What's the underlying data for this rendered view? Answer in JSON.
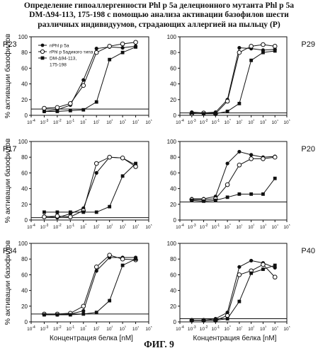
{
  "title_lines": [
    "Определение гипоаллергенности Phl p 5a делеционного мутанта Phl p 5a",
    "DM-Δ94-113, 175-198 с помощью анализа активации базофилов шести",
    "различных индивидуумов, страдающих аллергией на пыльцу (P)"
  ],
  "figure_caption": "ФИГ. 9",
  "colors": {
    "ink": "#111111",
    "background": "#ffffff"
  },
  "chart_data": [
    {
      "type": "line",
      "panel_label": "P23",
      "xscale": "log",
      "xlim": [
        0.0001,
        100000
      ],
      "ylim": [
        0,
        100
      ],
      "xticks": [
        "10-4",
        "10-3",
        "10-2",
        "10-1",
        "10⁰",
        "10¹",
        "10²",
        "10³",
        "10⁴",
        "10⁵"
      ],
      "yticks": [
        "0",
        "20",
        "40",
        "60",
        "80",
        "100"
      ],
      "ylabel": "% активации базофилов",
      "xlabel": "",
      "legend": {
        "placement": "top-left",
        "entries": [
          "nPhl p 5a",
          "rPhl p 5aдикого типа",
          "DM-Δ94-113,",
          "175-198"
        ]
      },
      "baseline": 8,
      "series": [
        {
          "name": "nPhl p 5a",
          "marker": "filled-circle",
          "x": [
            0.001,
            0.01,
            0.1,
            1,
            10,
            100,
            1000,
            10000
          ],
          "values": [
            5,
            7,
            13,
            45,
            85,
            87,
            86,
            88
          ]
        },
        {
          "name": "rPhl p 5aдикого типа",
          "marker": "open-circle",
          "x": [
            0.001,
            0.01,
            0.1,
            1,
            10,
            100,
            1000,
            10000
          ],
          "values": [
            9,
            10,
            15,
            38,
            80,
            88,
            91,
            93
          ]
        },
        {
          "name": "DM-Δ94-113, 175-198",
          "marker": "filled-square",
          "x": [
            0.001,
            0.01,
            0.1,
            1,
            10,
            100,
            1000,
            10000
          ],
          "values": [
            5,
            5,
            6,
            7,
            17,
            71,
            80,
            87
          ]
        }
      ]
    },
    {
      "type": "line",
      "panel_label": "P29",
      "xscale": "log",
      "xlim": [
        0.0001,
        100000
      ],
      "ylim": [
        0,
        100
      ],
      "xticks": [
        "10-4",
        "10-3",
        "10-2",
        "10-1",
        "10⁰",
        "10¹",
        "10²",
        "10³",
        "10⁴",
        "10⁵"
      ],
      "yticks": [
        "0",
        "20",
        "40",
        "60",
        "80",
        "100"
      ],
      "ylabel": "",
      "xlabel": "",
      "baseline": 3,
      "series": [
        {
          "name": "nPhl p 5a",
          "marker": "filled-circle",
          "x": [
            0.001,
            0.01,
            0.1,
            1,
            10,
            100,
            1000,
            10000
          ],
          "values": [
            4,
            3,
            4,
            20,
            86,
            85,
            83,
            84
          ]
        },
        {
          "name": "rPhl p 5aдикого типа",
          "marker": "open-circle",
          "x": [
            0.001,
            0.01,
            0.1,
            1,
            10,
            100,
            1000,
            10000
          ],
          "values": [
            2,
            3,
            2,
            18,
            80,
            88,
            90,
            88
          ]
        },
        {
          "name": "DM-Δ94-113, 175-198",
          "marker": "filled-square",
          "x": [
            0.001,
            0.01,
            0.1,
            1,
            10,
            100,
            1000,
            10000
          ],
          "values": [
            3,
            2,
            2,
            5,
            15,
            70,
            80,
            82
          ]
        }
      ]
    },
    {
      "type": "line",
      "panel_label": "P17",
      "xscale": "log",
      "xlim": [
        0.0001,
        100000
      ],
      "ylim": [
        0,
        100
      ],
      "xticks": [
        "10-4",
        "10-3",
        "10-2",
        "10-1",
        "10⁰",
        "10¹",
        "10²",
        "10³",
        "10⁴",
        "10⁵"
      ],
      "yticks": [
        "0",
        "20",
        "40",
        "60",
        "80",
        "100"
      ],
      "ylabel": "% активации базофилов",
      "xlabel": "",
      "baseline": 3,
      "series": [
        {
          "name": "nPhl p 5a",
          "marker": "filled-circle",
          "x": [
            0.001,
            0.01,
            0.1,
            1,
            10,
            100,
            1000,
            10000
          ],
          "values": [
            5,
            3,
            8,
            15,
            60,
            80,
            79,
            70
          ]
        },
        {
          "name": "rPhl p 5aдикого типа",
          "marker": "open-circle",
          "x": [
            0.001,
            0.01,
            0.1,
            1,
            10,
            100,
            1000,
            10000
          ],
          "values": [
            4,
            5,
            4,
            12,
            72,
            80,
            79,
            68
          ]
        },
        {
          "name": "DM-Δ94-113, 175-198",
          "marker": "filled-square",
          "x": [
            0.001,
            0.01,
            0.1,
            1,
            10,
            100,
            1000,
            10000
          ],
          "values": [
            10,
            10,
            10,
            10,
            10,
            17,
            56,
            72
          ]
        }
      ]
    },
    {
      "type": "line",
      "panel_label": "P20",
      "xscale": "log",
      "xlim": [
        0.0001,
        100000
      ],
      "ylim": [
        0,
        100
      ],
      "xticks": [
        "10-4",
        "10-3",
        "10-2",
        "10-1",
        "10⁰",
        "10¹",
        "10²",
        "10³",
        "10⁴",
        "10⁵"
      ],
      "yticks": [
        "0",
        "20",
        "40",
        "60",
        "80",
        "100"
      ],
      "ylabel": "",
      "xlabel": "",
      "baseline": 23,
      "series": [
        {
          "name": "nPhl p 5a",
          "marker": "filled-circle",
          "x": [
            0.001,
            0.01,
            0.1,
            1,
            10,
            100,
            1000,
            10000
          ],
          "values": [
            27,
            27,
            30,
            72,
            87,
            83,
            80,
            81
          ]
        },
        {
          "name": "rPhl p 5aдикого типа",
          "marker": "open-circle",
          "x": [
            0.001,
            0.01,
            0.1,
            1,
            10,
            100,
            1000,
            10000
          ],
          "values": [
            26,
            26,
            27,
            45,
            70,
            78,
            78,
            80
          ]
        },
        {
          "name": "DM-Δ94-113, 175-198",
          "marker": "filled-square",
          "x": [
            0.001,
            0.01,
            0.1,
            1,
            10,
            100,
            1000,
            10000
          ],
          "values": [
            25,
            24,
            25,
            29,
            33,
            33,
            33,
            53
          ]
        }
      ]
    },
    {
      "type": "line",
      "panel_label": "P34",
      "xscale": "log",
      "xlim": [
        0.0001,
        100000
      ],
      "ylim": [
        0,
        100
      ],
      "xticks": [
        "10-4",
        "10-3",
        "10-2",
        "10-1",
        "10⁰",
        "10¹",
        "10²",
        "10³",
        "10⁴",
        "10⁵"
      ],
      "yticks": [
        "0",
        "20",
        "40",
        "60",
        "80",
        "100"
      ],
      "ylabel": "% активации базофилов",
      "xlabel": "Концентрация белка [nM]",
      "baseline": 10,
      "series": [
        {
          "name": "nPhl p 5a",
          "marker": "filled-circle",
          "x": [
            0.001,
            0.01,
            0.1,
            1,
            10,
            100,
            1000,
            10000
          ],
          "values": [
            10,
            9,
            10,
            14,
            65,
            82,
            82,
            82
          ]
        },
        {
          "name": "rPhl p 5aдикого типа",
          "marker": "open-circle",
          "x": [
            0.001,
            0.01,
            0.1,
            1,
            10,
            100,
            1000,
            10000
          ],
          "values": [
            10,
            10,
            11,
            20,
            70,
            85,
            80,
            79
          ]
        },
        {
          "name": "DM-Δ94-113, 175-198",
          "marker": "filled-square",
          "x": [
            0.001,
            0.01,
            0.1,
            1,
            10,
            100,
            1000,
            10000
          ],
          "values": [
            9,
            9,
            9,
            10,
            12,
            27,
            72,
            80
          ]
        }
      ]
    },
    {
      "type": "line",
      "panel_label": "P40",
      "xscale": "log",
      "xlim": [
        0.0001,
        100000
      ],
      "ylim": [
        0,
        100
      ],
      "xticks": [
        "10-4",
        "10-3",
        "10-2",
        "10-1",
        "10⁰",
        "10¹",
        "10²",
        "10³",
        "10⁴",
        "10⁵"
      ],
      "yticks": [
        "0",
        "20",
        "40",
        "60",
        "80",
        "100"
      ],
      "ylabel": "",
      "xlabel": "Концентрация белка [nM]",
      "baseline": 4,
      "series": [
        {
          "name": "nPhl p 5a",
          "marker": "filled-circle",
          "x": [
            0.001,
            0.01,
            0.1,
            1,
            10,
            100,
            1000,
            10000
          ],
          "values": [
            2,
            2,
            4,
            12,
            70,
            78,
            75,
            69
          ]
        },
        {
          "name": "rPhl p 5aдикого типа",
          "marker": "open-circle",
          "x": [
            0.001,
            0.01,
            0.1,
            1,
            10,
            100,
            1000,
            10000
          ],
          "values": [
            2,
            2,
            2,
            8,
            60,
            65,
            73,
            57
          ]
        },
        {
          "name": "DM-Δ94-113, 175-198",
          "marker": "filled-square",
          "x": [
            0.001,
            0.01,
            0.1,
            1,
            10,
            100,
            1000,
            10000
          ],
          "values": [
            2,
            2,
            2,
            4,
            26,
            62,
            67,
            72
          ]
        }
      ]
    }
  ]
}
